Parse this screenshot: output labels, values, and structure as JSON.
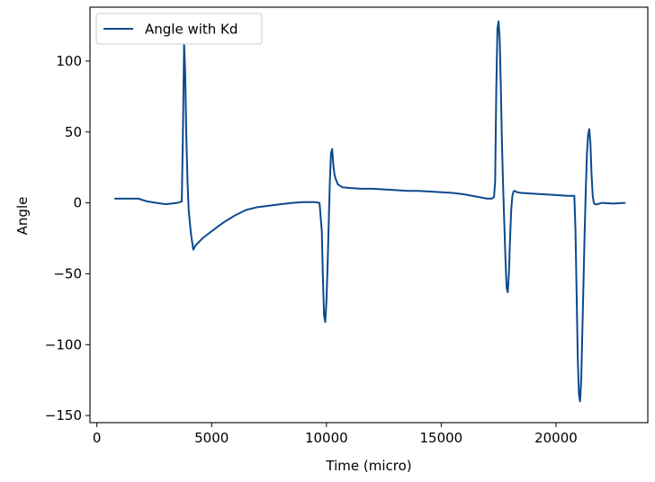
{
  "chart_data": {
    "type": "line",
    "title": "",
    "xlabel": "Time (micro)",
    "ylabel": "Angle",
    "xlim": [
      -300,
      24000
    ],
    "ylim": [
      -155,
      138
    ],
    "xticks": [
      0,
      5000,
      10000,
      15000,
      20000
    ],
    "yticks": [
      -150,
      -100,
      -50,
      0,
      50,
      100
    ],
    "yticks_labels": [
      "−150",
      "−100",
      "−50",
      "0",
      "50",
      "100"
    ],
    "grid": false,
    "legend": {
      "position": "upper-left"
    },
    "series": [
      {
        "name": "Angle with Kd",
        "color": "#0b4a8c",
        "x": [
          800,
          1800,
          2200,
          2600,
          3000,
          3500,
          3700,
          3750,
          3800,
          3850,
          3900,
          3950,
          4000,
          4100,
          4200,
          4300,
          4600,
          5000,
          5500,
          6000,
          6500,
          7000,
          7500,
          8000,
          8500,
          9000,
          9500,
          9700,
          9800,
          9850,
          9900,
          9950,
          10000,
          10050,
          10100,
          10150,
          10200,
          10250,
          10300,
          10350,
          10400,
          10450,
          10500,
          10600,
          10700,
          11000,
          11500,
          12000,
          12500,
          13000,
          13500,
          14000,
          14500,
          15000,
          15500,
          16000,
          16500,
          17000,
          17200,
          17300,
          17350,
          17400,
          17450,
          17500,
          17550,
          17600,
          17650,
          17700,
          17750,
          17800,
          17850,
          17900,
          17950,
          18000,
          18050,
          18100,
          18150,
          18200,
          18300,
          18500,
          19000,
          19500,
          20000,
          20500,
          20800,
          20850,
          20900,
          20950,
          21000,
          21050,
          21100,
          21150,
          21200,
          21250,
          21300,
          21350,
          21400,
          21450,
          21500,
          21550,
          21600,
          21650,
          21700,
          21800,
          22000,
          22500,
          23000
        ],
        "y": [
          3,
          3,
          1,
          0,
          -1,
          0,
          1,
          50,
          113,
          90,
          45,
          15,
          -5,
          -22,
          -33,
          -30,
          -25,
          -20,
          -14,
          -9,
          -5,
          -3,
          -2,
          -1,
          0,
          0.5,
          0.5,
          0,
          -20,
          -55,
          -80,
          -84,
          -70,
          -45,
          -15,
          15,
          35,
          38,
          27,
          20,
          17,
          15,
          13,
          12,
          11,
          10.5,
          10,
          10,
          9.5,
          9,
          8.5,
          8.5,
          8,
          7.5,
          7,
          6,
          4.5,
          3,
          3,
          4,
          15,
          80,
          123,
          128,
          115,
          80,
          40,
          10,
          -15,
          -40,
          -60,
          -63,
          -50,
          -25,
          -5,
          5,
          8,
          8.5,
          7.5,
          7,
          6.5,
          6,
          5.5,
          5,
          5,
          -20,
          -65,
          -110,
          -135,
          -140,
          -125,
          -90,
          -55,
          -20,
          10,
          35,
          48,
          52,
          42,
          20,
          5,
          0,
          -1,
          -1,
          0,
          -0.5,
          0
        ]
      }
    ]
  }
}
